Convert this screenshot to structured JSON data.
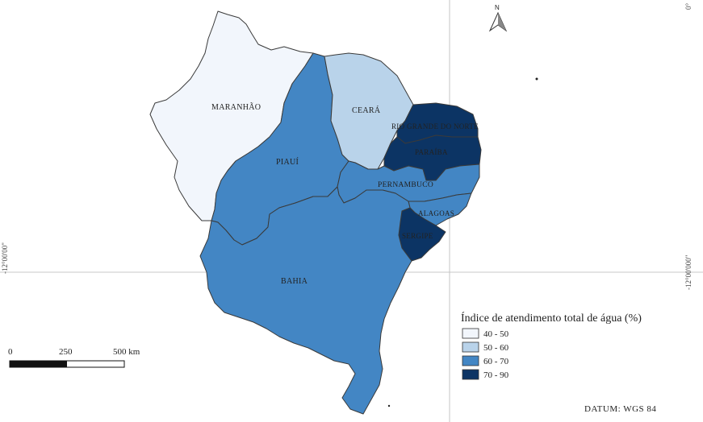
{
  "map": {
    "legend": {
      "title": "Índice de atendimento total de água (%)",
      "classes": [
        {
          "label": "40 - 50",
          "color": "#f2f6fc"
        },
        {
          "label": "50 - 60",
          "color": "#b9d3ea"
        },
        {
          "label": "60 - 70",
          "color": "#4386c4"
        },
        {
          "label": "70 - 90",
          "color": "#0c3464"
        }
      ]
    },
    "states": [
      {
        "key": "maranhao",
        "name": "MARANHÃO",
        "class_index": 0
      },
      {
        "key": "piaui",
        "name": "PIAUÍ",
        "class_index": 2
      },
      {
        "key": "ceara",
        "name": "CEARÁ",
        "class_index": 1
      },
      {
        "key": "rio_grande_do_norte",
        "name": "RIO GRANDE DO NORTE",
        "class_index": 3
      },
      {
        "key": "paraiba",
        "name": "PARAÍBA",
        "class_index": 3
      },
      {
        "key": "pernambuco",
        "name": "PERNAMBUCO",
        "class_index": 2
      },
      {
        "key": "alagoas",
        "name": "ALAGOAS",
        "class_index": 2
      },
      {
        "key": "sergipe",
        "name": "SERGIPE",
        "class_index": 3
      },
      {
        "key": "bahia",
        "name": "BAHIA",
        "class_index": 2
      }
    ],
    "scale_bar": {
      "ticks": [
        "0",
        "250",
        "500 km"
      ]
    },
    "north_arrow": {
      "label": "N",
      "icon": "north-arrow-icon"
    },
    "coordinates": {
      "right_label": "-12°00'000\""
    },
    "datum": "DATUM: WGS 84"
  }
}
